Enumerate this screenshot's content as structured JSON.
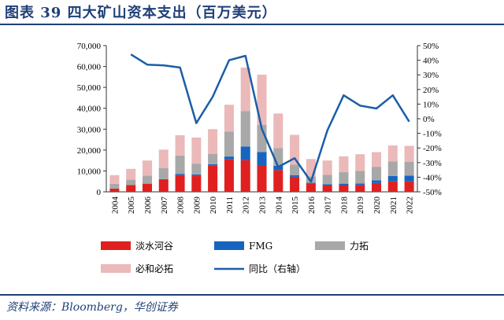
{
  "title": "图表 39  四大矿山资本支出（百万美元）",
  "source": "资料来源：Bloomberg，华创证券",
  "colors": {
    "淡水河谷": "#e02020",
    "FMG": "#1565c0",
    "力拓": "#a8a8a8",
    "必和必拓": "#ebb9b9",
    "同比（右轴）": "#1a5ea8"
  },
  "chart_data": {
    "type": "bar",
    "stacked": true,
    "categories": [
      "2004",
      "2005",
      "2006",
      "2007",
      "2008",
      "2009",
      "2010",
      "2011",
      "2012",
      "2013",
      "2014",
      "2015",
      "2016",
      "2017",
      "2018",
      "2019",
      "2020",
      "2021",
      "2022"
    ],
    "series": [
      {
        "name": "淡水河谷",
        "values": [
          1500,
          3300,
          3900,
          6000,
          8000,
          7800,
          12500,
          15500,
          15200,
          12600,
          10400,
          7200,
          3800,
          3000,
          3200,
          3300,
          4200,
          5000,
          5000
        ]
      },
      {
        "name": "FMG",
        "values": [
          0,
          0,
          0,
          100,
          600,
          500,
          700,
          1400,
          6500,
          6500,
          2100,
          800,
          500,
          600,
          700,
          700,
          1300,
          2600,
          2800
        ]
      },
      {
        "name": "力拓",
        "values": [
          2300,
          2500,
          3900,
          5200,
          8800,
          5200,
          5000,
          12000,
          17000,
          13000,
          8500,
          5000,
          3000,
          4500,
          5500,
          6000,
          6500,
          7000,
          6500
        ]
      },
      {
        "name": "必和必拓",
        "values": [
          4200,
          5200,
          7200,
          8900,
          9700,
          12500,
          11800,
          12800,
          20800,
          24000,
          16500,
          14300,
          8400,
          6900,
          7600,
          8000,
          7000,
          7600,
          7700
        ]
      }
    ],
    "line_series": [
      {
        "name": "同比（右轴）",
        "axis": "right",
        "values": [
          null,
          44,
          37,
          36.5,
          35,
          -3,
          15,
          40,
          43,
          -7,
          -33,
          -27,
          -43,
          -8,
          16,
          9,
          7,
          16,
          -2
        ]
      }
    ],
    "y_left": {
      "min": 0,
      "max": 70000,
      "step": 10000,
      "tick_labels": [
        "0",
        "10,000",
        "20,000",
        "30,000",
        "40,000",
        "50,000",
        "60,000",
        "70,000"
      ]
    },
    "y_right": {
      "min": -50,
      "max": 50,
      "step": 10,
      "tick_labels": [
        "-50%",
        "-40%",
        "-30%",
        "-20%",
        "-10%",
        "0%",
        "10%",
        "20%",
        "30%",
        "40%",
        "50%"
      ]
    },
    "legend_labels": [
      "淡水河谷",
      "FMG",
      "力拓",
      "必和必拓",
      "同比（右轴）"
    ],
    "legend_position": "bottom",
    "grid": false
  }
}
